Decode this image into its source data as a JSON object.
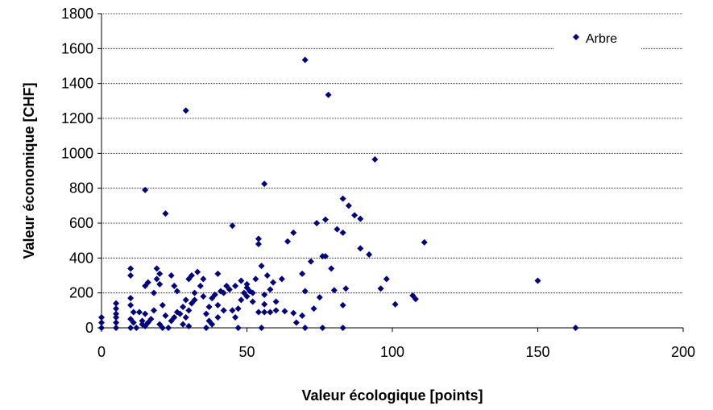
{
  "chart_data": {
    "type": "scatter",
    "xlabel": "Valeur écologique [points]",
    "ylabel": "Valeur économique [CHF]",
    "xlim": [
      0,
      200
    ],
    "xticks": [
      0,
      50,
      100,
      150,
      200
    ],
    "ylim": [
      0,
      1800
    ],
    "yticks": [
      0,
      200,
      400,
      600,
      800,
      1000,
      1200,
      1400,
      1600,
      1800
    ],
    "grid": true,
    "legend": "upper right",
    "x": [
      70,
      78,
      29,
      94,
      56,
      15,
      22,
      83,
      85,
      87,
      89,
      77,
      74,
      45,
      81,
      83,
      66,
      64,
      54,
      54,
      111,
      89,
      92,
      76,
      77,
      72,
      79,
      69,
      98,
      150,
      84,
      96,
      80,
      107,
      108,
      101,
      83,
      75,
      73,
      70,
      70,
      83,
      163,
      55,
      76,
      67,
      69,
      66,
      63,
      60,
      58,
      57,
      59,
      62,
      55,
      53,
      52,
      54,
      56,
      58,
      60,
      56,
      48,
      50,
      51,
      49,
      50,
      48,
      47,
      45,
      46,
      47,
      43,
      42,
      40,
      41,
      39,
      38,
      37,
      36,
      37,
      38,
      36,
      40,
      42,
      35,
      34,
      33,
      32,
      31,
      30,
      29,
      28,
      30,
      31,
      30,
      29,
      28,
      27,
      26,
      25,
      24,
      25,
      24,
      23,
      22,
      21,
      20,
      19,
      20,
      19,
      18,
      18,
      17,
      16,
      15,
      16,
      15,
      14,
      13,
      12,
      11,
      10,
      10,
      10,
      10,
      11,
      10,
      10,
      5,
      5,
      5,
      5,
      5,
      5,
      0,
      0,
      0,
      14,
      15,
      20,
      21,
      26,
      32,
      35,
      40,
      44,
      46,
      50,
      52,
      56
    ],
    "series": [
      {
        "name": "Arbre",
        "color": "#000080",
        "values": [
          1535,
          1335,
          1245,
          965,
          825,
          790,
          655,
          740,
          700,
          645,
          625,
          620,
          600,
          585,
          565,
          545,
          545,
          495,
          510,
          480,
          490,
          455,
          420,
          410,
          410,
          380,
          340,
          310,
          280,
          270,
          225,
          225,
          215,
          185,
          165,
          135,
          130,
          175,
          110,
          210,
          0,
          0,
          0,
          0,
          0,
          30,
          70,
          85,
          95,
          150,
          220,
          300,
          260,
          280,
          355,
          280,
          150,
          90,
          90,
          90,
          100,
          135,
          270,
          250,
          210,
          200,
          180,
          160,
          110,
          100,
          60,
          0,
          240,
          200,
          310,
          210,
          190,
          170,
          120,
          80,
          40,
          20,
          0,
          60,
          100,
          280,
          240,
          320,
          200,
          140,
          100,
          60,
          20,
          10,
          300,
          280,
          160,
          120,
          80,
          210,
          240,
          300,
          60,
          40,
          0,
          70,
          130,
          250,
          340,
          310,
          280,
          200,
          100,
          50,
          30,
          240,
          260,
          10,
          40,
          90,
          0,
          30,
          340,
          300,
          170,
          130,
          90,
          50,
          0,
          140,
          110,
          80,
          60,
          30,
          0,
          60,
          30,
          0,
          20,
          80,
          20,
          0,
          90,
          160,
          180,
          130,
          220,
          240,
          230,
          200,
          190
        ]
      }
    ]
  }
}
